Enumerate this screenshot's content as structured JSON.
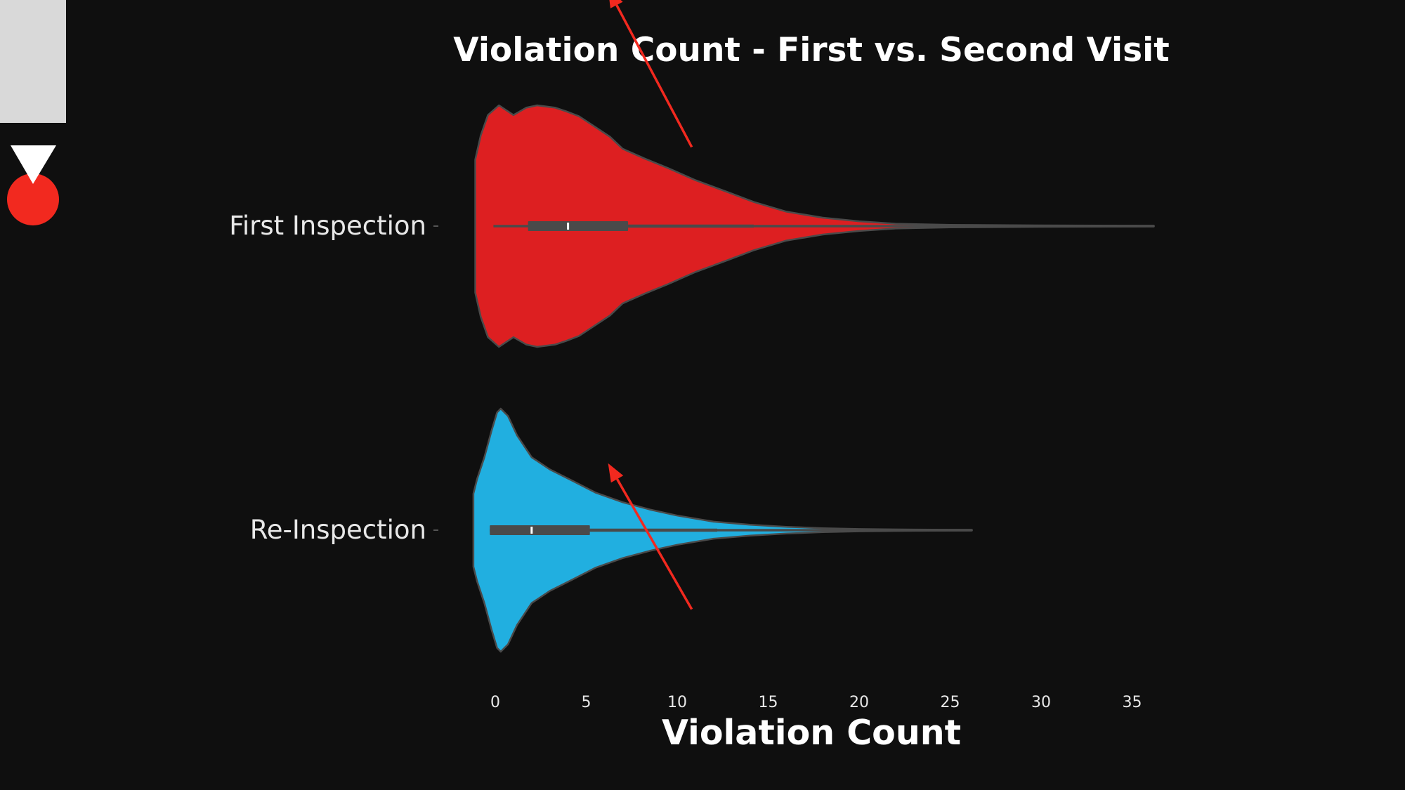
{
  "colors": {
    "background": "#0f0f0f",
    "panel": "#d9d9d9",
    "accent": "#f2291f",
    "first_violin": "#dd1f21",
    "re_violin": "#21afe0",
    "box": "#4a4a4a",
    "text": "#e8e8e8"
  },
  "icons": {
    "marker": "red-circle-with-white-down-triangle"
  },
  "chart_data": {
    "type": "violin",
    "orientation": "horizontal",
    "title": "Violation Count - First vs. Second Visit",
    "xlabel": "Violation Count",
    "ylabel": "",
    "xlim": [
      -1.3,
      36.7
    ],
    "xticks": [
      0,
      5,
      10,
      15,
      20,
      25,
      30,
      35
    ],
    "grid": false,
    "categories": [
      "First Inspection",
      "Re-Inspection"
    ],
    "series": [
      {
        "name": "First Inspection",
        "color": "#dd1f21",
        "min": -0.1,
        "q1": 1.8,
        "median": 4.0,
        "q3": 7.3,
        "whisker_high": 14.2,
        "max": 36.2,
        "density": [
          [
            -1.1,
            0.55
          ],
          [
            -0.8,
            0.75
          ],
          [
            -0.4,
            0.92
          ],
          [
            0.2,
            1.0
          ],
          [
            1.0,
            0.92
          ],
          [
            1.7,
            0.98
          ],
          [
            2.3,
            1.0
          ],
          [
            3.3,
            0.98
          ],
          [
            3.9,
            0.95
          ],
          [
            4.6,
            0.91
          ],
          [
            5.3,
            0.84
          ],
          [
            6.3,
            0.74
          ],
          [
            7.0,
            0.64
          ],
          [
            8.2,
            0.56
          ],
          [
            9.5,
            0.48
          ],
          [
            11.0,
            0.38
          ],
          [
            12.8,
            0.28
          ],
          [
            14.2,
            0.2
          ],
          [
            16.0,
            0.12
          ],
          [
            18.0,
            0.07
          ],
          [
            20.0,
            0.04
          ],
          [
            22.0,
            0.02
          ],
          [
            25.0,
            0.01
          ],
          [
            30.0,
            0.006
          ],
          [
            36.2,
            0.003
          ]
        ]
      },
      {
        "name": "Re-Inspection",
        "color": "#21afe0",
        "min": -0.3,
        "q1": -0.3,
        "median": 2.0,
        "q3": 5.2,
        "whisker_high": 12.2,
        "max": 26.2,
        "density": [
          [
            -1.2,
            0.3
          ],
          [
            -1.0,
            0.42
          ],
          [
            -0.6,
            0.6
          ],
          [
            -0.2,
            0.82
          ],
          [
            0.1,
            0.97
          ],
          [
            0.3,
            1.0
          ],
          [
            0.7,
            0.94
          ],
          [
            1.2,
            0.78
          ],
          [
            2.0,
            0.6
          ],
          [
            3.0,
            0.5
          ],
          [
            4.2,
            0.41
          ],
          [
            5.5,
            0.31
          ],
          [
            7.0,
            0.23
          ],
          [
            8.5,
            0.17
          ],
          [
            10.0,
            0.12
          ],
          [
            12.0,
            0.07
          ],
          [
            14.0,
            0.045
          ],
          [
            16.0,
            0.028
          ],
          [
            18.0,
            0.016
          ],
          [
            20.0,
            0.009
          ],
          [
            23.0,
            0.005
          ],
          [
            26.2,
            0.003
          ]
        ]
      }
    ],
    "annotations": [
      {
        "type": "arrow",
        "from": [
          10.8,
          -0.26
        ],
        "to": [
          6.2,
          -0.78
        ],
        "color": "#f2291f",
        "target": "Re-Inspection"
      },
      {
        "type": "arrow",
        "from": [
          10.8,
          1.26
        ],
        "to": [
          6.2,
          0.78
        ],
        "color": "#f2291f",
        "target": "Re-Inspection"
      }
    ]
  }
}
